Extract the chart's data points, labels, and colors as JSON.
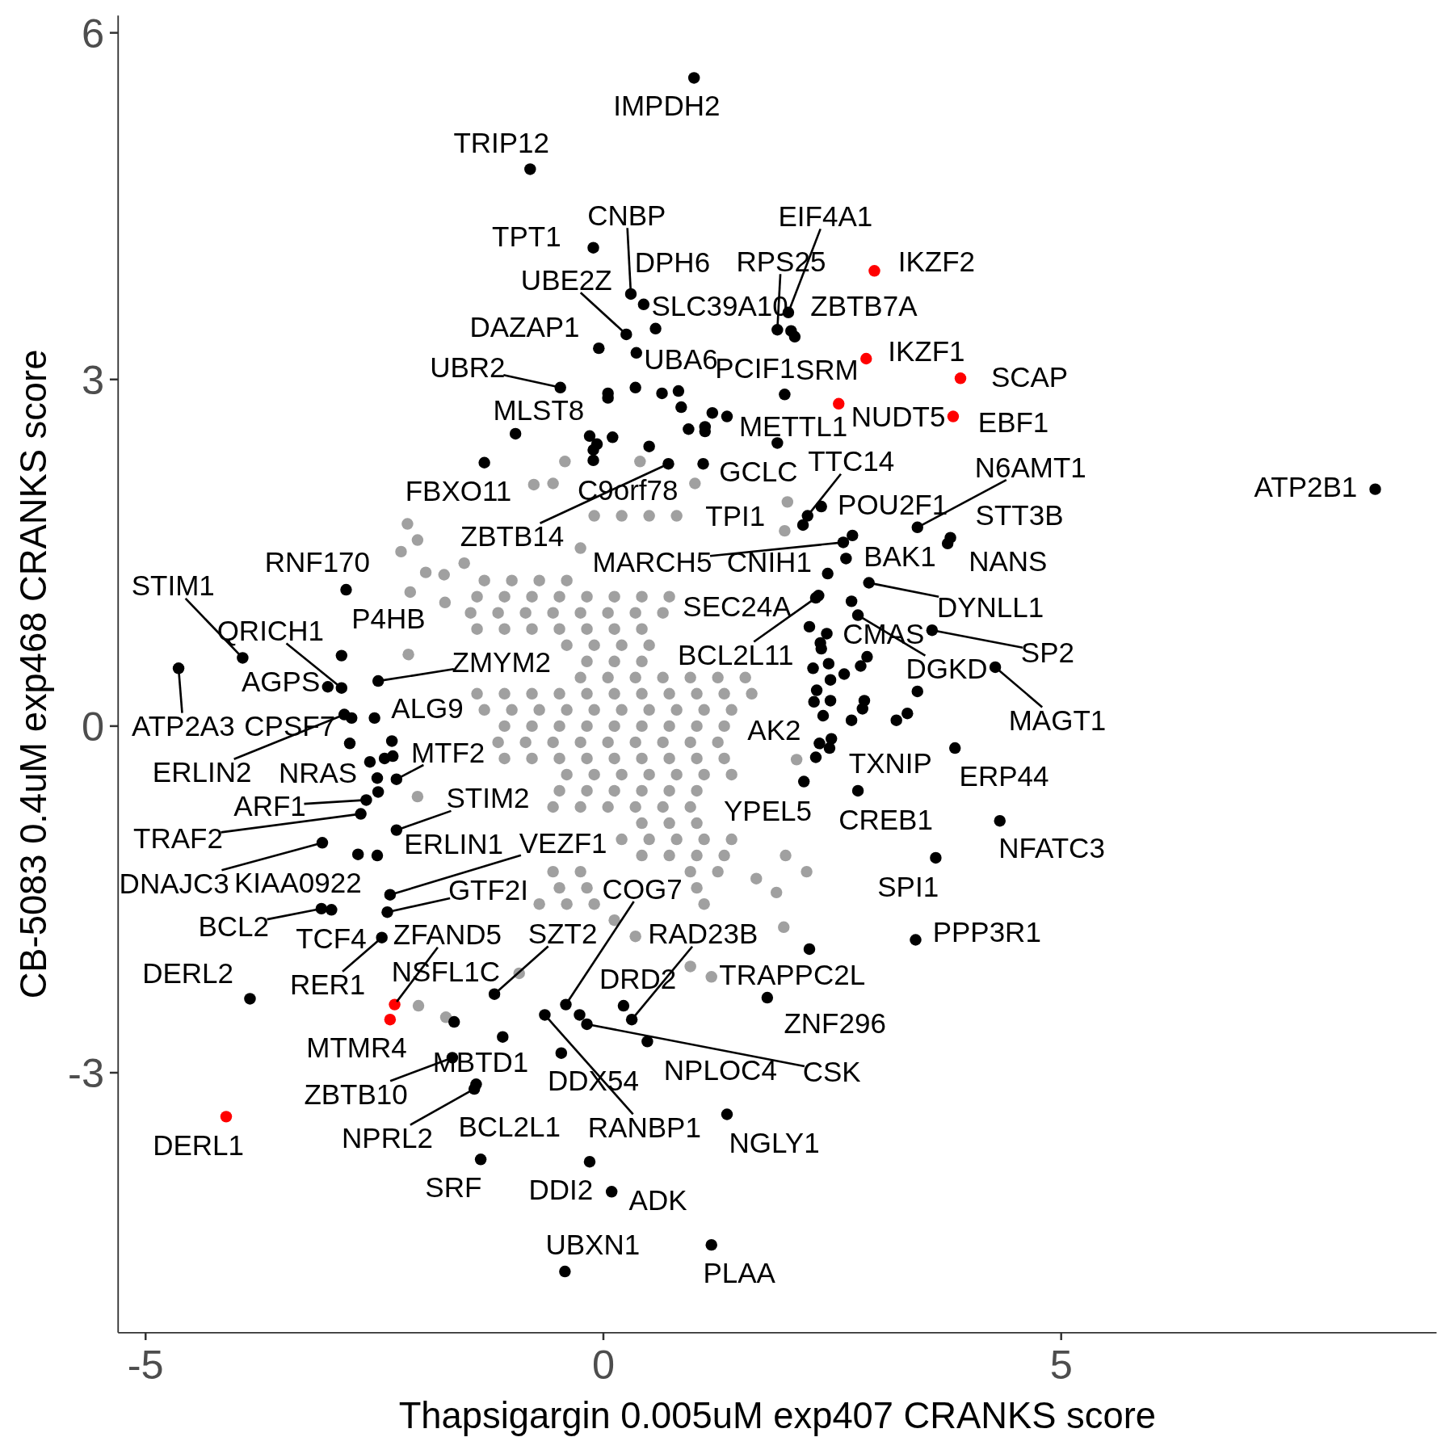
{
  "chart_data": {
    "type": "scatter",
    "xlabel": "Thapsigargin 0.005uM exp407 CRANKS score",
    "ylabel": "CB-5083 0.4uM exp468 CRANKS score",
    "xlim": [
      -5.3,
      9.1
    ],
    "ylim": [
      -5.25,
      6.15
    ],
    "xticks": [
      -5,
      0,
      5
    ],
    "yticks": [
      -3,
      0,
      3,
      6
    ],
    "marker": "circle",
    "series": [
      {
        "color": "#a0a0a0",
        "x": [
          -0.55,
          1.0,
          -0.1,
          0.2,
          0.5,
          0.8,
          -0.25,
          -1.3,
          -1.0,
          -0.7,
          -0.4,
          -1.38,
          -1.08,
          -0.78,
          -0.48,
          -0.18,
          0.12,
          0.42,
          0.72,
          -1.45,
          -1.15,
          -0.85,
          -0.55,
          -0.25,
          0.05,
          0.35,
          0.65,
          -1.38,
          -1.08,
          -0.78,
          -0.48,
          -0.18,
          0.12,
          0.42,
          -0.4,
          -0.1,
          0.2,
          0.5,
          -0.18,
          0.12,
          0.42,
          -0.25,
          0.05,
          0.35,
          0.65,
          0.95,
          1.25,
          1.55,
          -1.38,
          -1.08,
          -0.78,
          -0.48,
          -0.18,
          0.12,
          0.42,
          0.72,
          1.02,
          1.32,
          1.62,
          -1.3,
          -1.0,
          -0.7,
          -0.4,
          -0.1,
          0.2,
          0.5,
          0.8,
          1.1,
          1.4,
          -1.08,
          -0.78,
          -0.48,
          -0.18,
          0.12,
          0.42,
          0.72,
          1.02,
          1.32,
          -1.15,
          -0.85,
          -0.55,
          -0.25,
          0.05,
          0.35,
          0.65,
          0.95,
          1.25,
          -1.08,
          -0.78,
          -0.48,
          -0.18,
          0.12,
          0.42,
          0.72,
          1.02,
          1.32,
          -0.4,
          -0.1,
          0.2,
          0.5,
          0.8,
          1.1,
          1.4,
          -0.48,
          -0.18,
          0.12,
          0.42,
          0.72,
          1.02,
          -0.55,
          -0.25,
          0.05,
          0.35,
          0.65,
          0.95,
          0.42,
          0.72,
          1.02,
          0.2,
          0.5,
          0.8,
          1.1,
          1.4,
          0.42,
          0.72,
          1.02,
          1.32,
          -0.55,
          -0.25,
          0.95,
          1.25,
          -0.48,
          -0.18,
          1.02,
          -0.7,
          -0.4,
          -0.1,
          1.1,
          0.12,
          0.35,
          -0.76,
          0.4,
          2.01,
          -2.21,
          -2.03,
          -2.11,
          -1.94,
          -1.74,
          -1.52,
          -2.13,
          -2.03,
          -2.14,
          -1.73,
          2.11,
          1.99,
          1.67,
          1.89,
          1.97,
          1.18,
          -2.02,
          -1.72,
          -0.92,
          0.95,
          2.22,
          1.98,
          -0.42
        ],
        "values": [
          2.1,
          2.1,
          1.82,
          1.82,
          1.82,
          1.82,
          1.54,
          1.26,
          1.26,
          1.26,
          1.26,
          1.12,
          1.12,
          1.12,
          1.12,
          1.12,
          1.12,
          1.12,
          1.12,
          0.98,
          0.98,
          0.98,
          0.98,
          0.98,
          0.98,
          0.98,
          0.98,
          0.84,
          0.84,
          0.84,
          0.84,
          0.84,
          0.84,
          0.84,
          0.7,
          0.7,
          0.7,
          0.7,
          0.56,
          0.56,
          0.56,
          0.42,
          0.42,
          0.42,
          0.42,
          0.42,
          0.42,
          0.42,
          0.28,
          0.28,
          0.28,
          0.28,
          0.28,
          0.28,
          0.28,
          0.28,
          0.28,
          0.28,
          0.28,
          0.14,
          0.14,
          0.14,
          0.14,
          0.14,
          0.14,
          0.14,
          0.14,
          0.14,
          0.14,
          0,
          0,
          0,
          0,
          0,
          0,
          0,
          0,
          0,
          -0.14,
          -0.14,
          -0.14,
          -0.14,
          -0.14,
          -0.14,
          -0.14,
          -0.14,
          -0.14,
          -0.28,
          -0.28,
          -0.28,
          -0.28,
          -0.28,
          -0.28,
          -0.28,
          -0.28,
          -0.28,
          -0.42,
          -0.42,
          -0.42,
          -0.42,
          -0.42,
          -0.42,
          -0.42,
          -0.56,
          -0.56,
          -0.56,
          -0.56,
          -0.56,
          -0.56,
          -0.7,
          -0.7,
          -0.7,
          -0.7,
          -0.7,
          -0.7,
          -0.84,
          -0.84,
          -0.84,
          -0.98,
          -0.98,
          -0.98,
          -0.98,
          -0.98,
          -1.12,
          -1.12,
          -1.12,
          -1.12,
          -1.26,
          -1.26,
          -1.26,
          -1.26,
          -1.4,
          -1.4,
          -1.4,
          -1.54,
          -1.54,
          -1.54,
          -1.54,
          -1.68,
          -1.82,
          2.09,
          2.29,
          1.94,
          1.51,
          1.61,
          1.16,
          1.33,
          1.31,
          1.41,
          0.62,
          -0.61,
          1.75,
          1.07,
          -0.29,
          -1.12,
          -1.32,
          -1.44,
          -1.74,
          -2.17,
          -2.42,
          -2.52,
          -2.14,
          -2.08,
          -1.26,
          1.69,
          2.29
        ]
      },
      {
        "color": "#000000",
        "x": [
          0.99,
          -0.8,
          -0.11,
          0.3,
          2.02,
          0.44,
          1.9,
          0.25,
          0.57,
          2.09,
          -0.05,
          -0.47,
          0.36,
          1.35,
          1.98,
          -0.96,
          1.9,
          2.23,
          3.43,
          1.09,
          -1.3,
          0.5,
          8.43,
          2.38,
          2.18,
          3.79,
          0.71,
          2.62,
          2.45,
          2.65,
          3.76,
          -2.81,
          -3.94,
          2.9,
          2.25,
          -2.86,
          -2.86,
          2.71,
          3.59,
          2.32,
          -2.46,
          -3.01,
          2.78,
          -2.5,
          -4.64,
          -2.75,
          4.28,
          2.36,
          -2.26,
          -2.83,
          -2.77,
          3.2,
          3.84,
          -2.26,
          2.19,
          -2.59,
          2.78,
          -2.65,
          -2.47,
          -2.33,
          4.33,
          -3.07,
          -2.68,
          3.63,
          -2.36,
          -0.41,
          -3.08,
          -2.97,
          -1.19,
          0.31,
          3.41,
          -3.86,
          -2.42,
          -1.63,
          0.22,
          2.25,
          1.79,
          -1.1,
          -0.46,
          0.48,
          -0.18,
          -1.65,
          -1.41,
          -1.39,
          -0.64,
          1.35,
          -1.34,
          -0.15,
          0.09,
          -0.42,
          1.18,
          2.05,
          0.05,
          0.05,
          0.35,
          0.64,
          0.82,
          0.85,
          1.19,
          0.93,
          1.11,
          1.11,
          -0.15,
          0.1,
          -0.07,
          -0.11,
          -0.11,
          2.72,
          2.35,
          2.44,
          2.37,
          2.38,
          2.88,
          2.81,
          2.29,
          2.46,
          2.48,
          2.63,
          3.43,
          2.33,
          2.3,
          2.48,
          2.85,
          2.83,
          2.4,
          2.71,
          3.32,
          2.49,
          2.47,
          2.32,
          -2.31,
          -2.39,
          -2.3,
          -2.55,
          -2.47,
          -2.46,
          -0.26
        ],
        "values": [
          5.61,
          4.82,
          4.14,
          3.74,
          3.58,
          3.65,
          3.43,
          3.39,
          3.44,
          3.37,
          3.27,
          2.93,
          3.23,
          2.68,
          2.87,
          2.53,
          2.45,
          1.82,
          1.72,
          2.27,
          2.28,
          2.42,
          2.05,
          1.9,
          1.74,
          1.63,
          2.27,
          1.59,
          1.32,
          1.45,
          1.58,
          1.18,
          0.59,
          1.24,
          0.86,
          0.61,
          0.33,
          1.08,
          0.83,
          1.11,
          0.39,
          0.34,
          0.96,
          0.07,
          0.5,
          0.07,
          0.51,
          -0.15,
          -0.46,
          0.1,
          -0.15,
          0.05,
          -0.19,
          -0.9,
          -0.48,
          -0.64,
          -0.56,
          -0.76,
          -1.12,
          -1.46,
          -0.82,
          -1.01,
          -1.11,
          -1.14,
          -1.61,
          -2.41,
          -1.58,
          -1.59,
          -2.32,
          -2.54,
          -1.85,
          -2.36,
          -1.83,
          -2.56,
          -2.42,
          -1.93,
          -2.35,
          -2.69,
          -2.83,
          -2.73,
          -2.58,
          -2.87,
          -3.14,
          -3.1,
          -2.5,
          -3.36,
          -3.75,
          -3.77,
          -4.03,
          -4.72,
          -4.49,
          3.42,
          2.88,
          2.84,
          2.93,
          2.88,
          2.9,
          2.76,
          2.71,
          2.57,
          2.59,
          2.55,
          2.51,
          2.5,
          2.44,
          2.39,
          2.3,
          1.65,
          1.13,
          0.8,
          0.72,
          0.67,
          0.6,
          0.52,
          0.5,
          0.54,
          0.4,
          0.45,
          0.3,
          0.31,
          0.21,
          0.22,
          0.22,
          0.15,
          0.09,
          0.05,
          0.11,
          -0.11,
          -0.19,
          -0.27,
          -0.13,
          -0.28,
          -0.26,
          -0.31,
          -0.45,
          -0.57,
          -2.5
        ]
      },
      {
        "color": "#ff0000",
        "x": [
          2.96,
          2.87,
          3.9,
          2.57,
          3.82,
          -2.28,
          -2.33,
          -4.12
        ],
        "values": [
          3.94,
          3.18,
          3.01,
          2.79,
          2.68,
          -2.41,
          -2.54,
          -3.38
        ]
      }
    ],
    "annotations": [
      {
        "text": "IMPDH2",
        "x": 0.99,
        "y": 5.61
      },
      {
        "text": "TRIP12",
        "x": -0.8,
        "y": 4.82
      },
      {
        "text": "TPT1",
        "x": -0.11,
        "y": 4.14
      },
      {
        "text": "CNBP",
        "x": 0.3,
        "y": 3.74
      },
      {
        "text": "EIF4A1",
        "x": 2.02,
        "y": 3.58
      },
      {
        "text": "DPH6",
        "x": 0.44,
        "y": 3.65
      },
      {
        "text": "RPS25",
        "x": 1.9,
        "y": 3.43
      },
      {
        "text": "IKZF2",
        "x": 2.96,
        "y": 3.94
      },
      {
        "text": "UBE2Z",
        "x": 0.25,
        "y": 3.39
      },
      {
        "text": "SLC39A10",
        "x": 0.57,
        "y": 3.44
      },
      {
        "text": "ZBTB7A",
        "x": 2.09,
        "y": 3.37
      },
      {
        "text": "DAZAP1",
        "x": -0.05,
        "y": 3.27
      },
      {
        "text": "IKZF1",
        "x": 2.87,
        "y": 3.18
      },
      {
        "text": "UBR2",
        "x": -0.47,
        "y": 2.93
      },
      {
        "text": "UBA6",
        "x": 0.36,
        "y": 3.23
      },
      {
        "text": "PCIF1",
        "x": 1.35,
        "y": 2.68
      },
      {
        "text": "SRM",
        "x": 1.98,
        "y": 2.87
      },
      {
        "text": "SCAP",
        "x": 3.9,
        "y": 3.01
      },
      {
        "text": "MLST8",
        "x": -0.96,
        "y": 2.53
      },
      {
        "text": "METTL1",
        "x": 1.9,
        "y": 2.45
      },
      {
        "text": "NUDT5",
        "x": 2.57,
        "y": 2.79
      },
      {
        "text": "EBF1",
        "x": 3.82,
        "y": 2.68
      },
      {
        "text": "TTC14",
        "x": 2.23,
        "y": 1.82
      },
      {
        "text": "N6AMT1",
        "x": 3.43,
        "y": 1.72
      },
      {
        "text": "GCLC",
        "x": 1.09,
        "y": 2.27
      },
      {
        "text": "FBXO11",
        "x": -1.3,
        "y": 2.28
      },
      {
        "text": "C9orf78",
        "x": 0.5,
        "y": 2.42
      },
      {
        "text": "ATP2B1",
        "x": 8.43,
        "y": 2.05
      },
      {
        "text": "POU2F1",
        "x": 2.38,
        "y": 1.9
      },
      {
        "text": "TPI1",
        "x": 2.18,
        "y": 1.74
      },
      {
        "text": "STT3B",
        "x": 3.79,
        "y": 1.63
      },
      {
        "text": "ZBTB14",
        "x": 0.71,
        "y": 2.27
      },
      {
        "text": "MARCH5",
        "x": 2.62,
        "y": 1.59
      },
      {
        "text": "CNIH1",
        "x": 2.45,
        "y": 1.32
      },
      {
        "text": "BAK1",
        "x": 2.65,
        "y": 1.45
      },
      {
        "text": "NANS",
        "x": 3.76,
        "y": 1.58
      },
      {
        "text": "RNF170",
        "x": -2.81,
        "y": 1.18
      },
      {
        "text": "STIM1",
        "x": -3.94,
        "y": 0.59
      },
      {
        "text": "DYNLL1",
        "x": 2.9,
        "y": 1.24
      },
      {
        "text": "SEC24A",
        "x": 2.25,
        "y": 0.86
      },
      {
        "text": "P4HB",
        "x": -2.86,
        "y": 0.61
      },
      {
        "text": "QRICH1",
        "x": -2.86,
        "y": 0.33
      },
      {
        "text": "CMAS",
        "x": 2.71,
        "y": 1.08
      },
      {
        "text": "SP2",
        "x": 3.59,
        "y": 0.83
      },
      {
        "text": "BCL2L11",
        "x": 2.32,
        "y": 1.11
      },
      {
        "text": "ZMYM2",
        "x": -2.46,
        "y": 0.39
      },
      {
        "text": "AGPS",
        "x": -3.01,
        "y": 0.34
      },
      {
        "text": "DGKD",
        "x": 2.78,
        "y": 0.96
      },
      {
        "text": "ALG9",
        "x": -2.5,
        "y": 0.07
      },
      {
        "text": "ATP2A3",
        "x": -4.64,
        "y": 0.5
      },
      {
        "text": "CPSF7",
        "x": -2.75,
        "y": 0.07
      },
      {
        "text": "MAGT1",
        "x": 4.28,
        "y": 0.51
      },
      {
        "text": "AK2",
        "x": 2.36,
        "y": -0.15
      },
      {
        "text": "MTF2",
        "x": -2.26,
        "y": -0.46
      },
      {
        "text": "ERLIN2",
        "x": -2.83,
        "y": 0.1
      },
      {
        "text": "NRAS",
        "x": -2.77,
        "y": -0.15
      },
      {
        "text": "TXNIP",
        "x": 3.2,
        "y": 0.05
      },
      {
        "text": "ERP44",
        "x": 3.84,
        "y": -0.19
      },
      {
        "text": "STIM2",
        "x": -2.26,
        "y": -0.9
      },
      {
        "text": "YPEL5",
        "x": 2.19,
        "y": -0.48
      },
      {
        "text": "ARF1",
        "x": -2.59,
        "y": -0.64
      },
      {
        "text": "CREB1",
        "x": 2.78,
        "y": -0.56
      },
      {
        "text": "TRAF2",
        "x": -2.65,
        "y": -0.76
      },
      {
        "text": "ERLIN1",
        "x": -2.47,
        "y": -1.12
      },
      {
        "text": "VEZF1",
        "x": -2.33,
        "y": -1.46
      },
      {
        "text": "NFATC3",
        "x": 4.33,
        "y": -0.82
      },
      {
        "text": "DNAJC3",
        "x": -3.07,
        "y": -1.01
      },
      {
        "text": "KIAA0922",
        "x": -2.68,
        "y": -1.11
      },
      {
        "text": "SPI1",
        "x": 3.63,
        "y": -1.14
      },
      {
        "text": "GTF2I",
        "x": -2.36,
        "y": -1.61
      },
      {
        "text": "COG7",
        "x": -0.41,
        "y": -2.41
      },
      {
        "text": "BCL2",
        "x": -3.08,
        "y": -1.58
      },
      {
        "text": "TCF4",
        "x": -2.97,
        "y": -1.59
      },
      {
        "text": "ZFAND5",
        "x": -2.28,
        "y": -2.41
      },
      {
        "text": "SZT2",
        "x": -1.19,
        "y": -2.32
      },
      {
        "text": "RAD23B",
        "x": 0.31,
        "y": -2.54
      },
      {
        "text": "PPP3R1",
        "x": 3.41,
        "y": -1.85
      },
      {
        "text": "DERL2",
        "x": -3.86,
        "y": -2.36
      },
      {
        "text": "RER1",
        "x": -2.42,
        "y": -1.83
      },
      {
        "text": "NSFL1C",
        "x": -1.63,
        "y": -2.56
      },
      {
        "text": "DRD2",
        "x": 0.22,
        "y": -2.42
      },
      {
        "text": "TRAPPC2L",
        "x": 2.25,
        "y": -1.93
      },
      {
        "text": "ZNF296",
        "x": 1.79,
        "y": -2.35
      },
      {
        "text": "MTMR4",
        "x": -2.33,
        "y": -2.54
      },
      {
        "text": "MBTD1",
        "x": -1.1,
        "y": -2.69
      },
      {
        "text": "DDX54",
        "x": -0.46,
        "y": -2.83
      },
      {
        "text": "NPLOC4",
        "x": 0.48,
        "y": -2.73
      },
      {
        "text": "CSK",
        "x": -0.18,
        "y": -2.58
      },
      {
        "text": "ZBTB10",
        "x": -1.65,
        "y": -2.87
      },
      {
        "text": "DERL1",
        "x": -4.12,
        "y": -3.38
      },
      {
        "text": "NPRL2",
        "x": -1.41,
        "y": -3.14
      },
      {
        "text": "BCL2L1",
        "x": -1.39,
        "y": -3.1
      },
      {
        "text": "RANBP1",
        "x": -0.64,
        "y": -2.5
      },
      {
        "text": "NGLY1",
        "x": 1.35,
        "y": -3.36
      },
      {
        "text": "SRF",
        "x": -1.34,
        "y": -3.75
      },
      {
        "text": "DDI2",
        "x": -0.15,
        "y": -3.77
      },
      {
        "text": "ADK",
        "x": 0.09,
        "y": -4.03
      },
      {
        "text": "UBXN1",
        "x": -0.42,
        "y": -4.72
      },
      {
        "text": "PLAA",
        "x": 1.18,
        "y": -4.49
      }
    ]
  }
}
